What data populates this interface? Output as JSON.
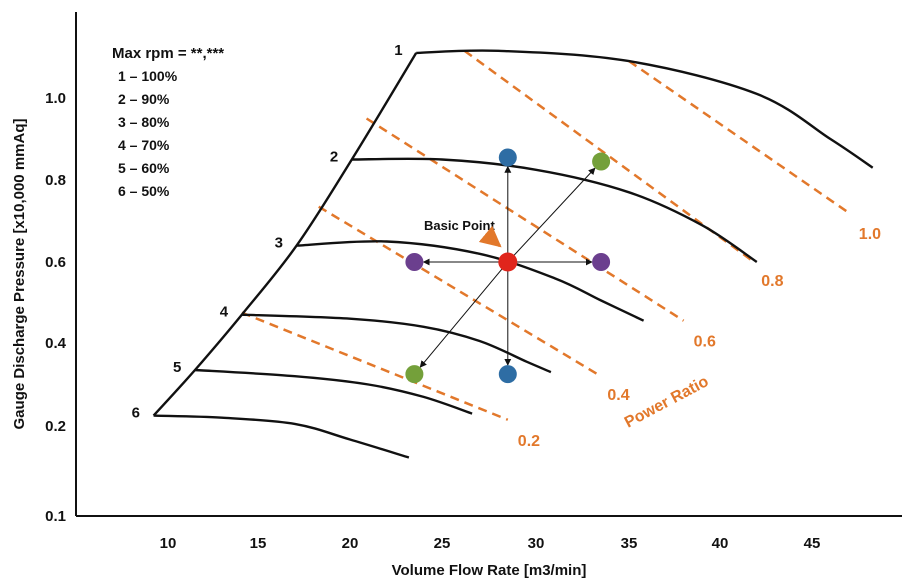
{
  "chart_data": {
    "type": "line",
    "xlabel": "Volume Flow Rate [m3/min]",
    "ylabel": "Gauge Discharge Pressure [x10,000 mmAq]",
    "xlim": [
      7,
      52
    ],
    "ylim": [
      0.08,
      1.13
    ],
    "x_ticks": [
      "10",
      "15",
      "20",
      "25",
      "30",
      "35",
      "40",
      "45"
    ],
    "y_ticks": [
      "0.1",
      "0.2",
      "0.4",
      "0.6",
      "0.8",
      "1.0"
    ],
    "legend": {
      "title": "Max rpm = **,***",
      "items": [
        "1 – 100%",
        "2 – 90%",
        "3 – 80%",
        "4 – 70%",
        "5 – 60%",
        "6 – 50%"
      ],
      "placement": "top-left"
    },
    "speed_curves": [
      {
        "label": "1",
        "points": [
          [
            23.6,
            1.11
          ],
          [
            28,
            1.115
          ],
          [
            35,
            1.09
          ],
          [
            42,
            1.01
          ],
          [
            46,
            0.9
          ],
          [
            48.3,
            0.83
          ]
        ]
      },
      {
        "label": "2",
        "points": [
          [
            20.1,
            0.85
          ],
          [
            25,
            0.85
          ],
          [
            30,
            0.825
          ],
          [
            35,
            0.77
          ],
          [
            39,
            0.69
          ],
          [
            42,
            0.6
          ]
        ]
      },
      {
        "label": "3",
        "points": [
          [
            17.1,
            0.64
          ],
          [
            22,
            0.65
          ],
          [
            27,
            0.62
          ],
          [
            31,
            0.56
          ],
          [
            33.5,
            0.505
          ],
          [
            35.8,
            0.455
          ]
        ]
      },
      {
        "label": "4",
        "points": [
          [
            14.1,
            0.47
          ],
          [
            20,
            0.46
          ],
          [
            24,
            0.44
          ],
          [
            27,
            0.405
          ],
          [
            29.5,
            0.355
          ],
          [
            30.8,
            0.33
          ]
        ]
      },
      {
        "label": "5",
        "points": [
          [
            11.5,
            0.335
          ],
          [
            17,
            0.32
          ],
          [
            21,
            0.3
          ],
          [
            24,
            0.27
          ],
          [
            26.6,
            0.23
          ]
        ]
      },
      {
        "label": "6",
        "points": [
          [
            9.2,
            0.225
          ],
          [
            13,
            0.22
          ],
          [
            17,
            0.205
          ],
          [
            20,
            0.185
          ],
          [
            23.2,
            0.165
          ]
        ]
      }
    ],
    "surge_line": [
      [
        9.2,
        0.225
      ],
      [
        11.5,
        0.335
      ],
      [
        14.1,
        0.47
      ],
      [
        17.1,
        0.64
      ],
      [
        20.1,
        0.85
      ],
      [
        23.6,
        1.11
      ]
    ],
    "power_ratio_lines": [
      {
        "label": "0.2",
        "points": [
          [
            14.1,
            0.475
          ],
          [
            28.5,
            0.215
          ]
        ]
      },
      {
        "label": "0.4",
        "points": [
          [
            18.3,
            0.735
          ],
          [
            33.3,
            0.325
          ]
        ]
      },
      {
        "label": "0.6",
        "points": [
          [
            20.9,
            0.95
          ],
          [
            38,
            0.455
          ]
        ]
      },
      {
        "label": "0.8",
        "points": [
          [
            26.2,
            1.115
          ],
          [
            41.7,
            0.605
          ]
        ]
      },
      {
        "label": "1.0",
        "points": [
          [
            35,
            1.09
          ],
          [
            47,
            0.72
          ]
        ]
      }
    ],
    "power_ratio_title": "Power Ratio",
    "basic_point": {
      "label": "Basic Point",
      "x": 28.5,
      "y": 0.6,
      "color": "#e0251c"
    },
    "operating_points": [
      {
        "x": 28.5,
        "y": 0.855,
        "color": "#2e6da4"
      },
      {
        "x": 28.5,
        "y": 0.325,
        "color": "#2e6da4"
      },
      {
        "x": 23.5,
        "y": 0.6,
        "color": "#6b3f8e"
      },
      {
        "x": 33.5,
        "y": 0.6,
        "color": "#6b3f8e"
      },
      {
        "x": 33.5,
        "y": 0.845,
        "color": "#74a03a"
      },
      {
        "x": 23.5,
        "y": 0.325,
        "color": "#74a03a"
      }
    ],
    "grid": false
  },
  "colors": {
    "curve": "#111111",
    "power_ratio": "#e2782b",
    "arrow": "#111111"
  }
}
